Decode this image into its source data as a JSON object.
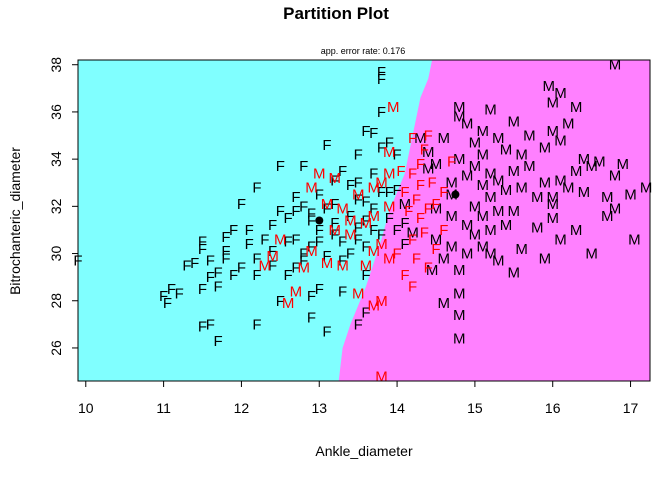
{
  "chart_data": {
    "type": "scatter",
    "title": "Partition Plot",
    "subtitle": "app. error rate: 0.176",
    "xlabel": "Ankle_diameter",
    "ylabel": "Bitrochanteric_diameter",
    "xlim": [
      9.9,
      17.25
    ],
    "ylim": [
      24.6,
      38.2
    ],
    "x_ticks": [
      "10",
      "11",
      "12",
      "13",
      "14",
      "15",
      "16",
      "17"
    ],
    "y_ticks": [
      "26",
      "28",
      "30",
      "32",
      "34",
      "36",
      "38"
    ],
    "regions": [
      {
        "label": "F",
        "color": "#80FFFF"
      },
      {
        "label": "M",
        "color": "#FF80FF"
      }
    ],
    "boundary": [
      [
        13.25,
        24.6
      ],
      [
        13.3,
        26.0
      ],
      [
        13.4,
        27.0
      ],
      [
        13.5,
        27.8
      ],
      [
        13.6,
        28.6
      ],
      [
        13.7,
        29.6
      ],
      [
        13.8,
        30.6
      ],
      [
        13.9,
        31.8
      ],
      [
        14.0,
        32.6
      ],
      [
        14.1,
        33.4
      ],
      [
        14.15,
        34.2
      ],
      [
        14.2,
        35.0
      ],
      [
        14.25,
        35.8
      ],
      [
        14.3,
        36.6
      ],
      [
        14.4,
        37.4
      ],
      [
        14.45,
        38.2
      ]
    ],
    "means": [
      {
        "group": "F",
        "x": 13.0,
        "y": 31.4
      },
      {
        "group": "M",
        "x": 14.75,
        "y": 32.5
      }
    ],
    "point_colors": {
      "correct": "#000000",
      "misclassified": "#FF0000"
    },
    "points_F": [
      [
        9.9,
        29.7
      ],
      [
        11.0,
        28.2
      ],
      [
        11.05,
        27.9
      ],
      [
        11.1,
        28.5
      ],
      [
        11.2,
        28.3
      ],
      [
        11.3,
        29.5
      ],
      [
        11.4,
        29.6
      ],
      [
        11.5,
        26.9
      ],
      [
        11.6,
        27.0
      ],
      [
        11.5,
        28.5
      ],
      [
        11.6,
        29.0
      ],
      [
        11.5,
        30.2
      ],
      [
        11.5,
        30.5
      ],
      [
        11.6,
        29.7
      ],
      [
        11.7,
        28.6
      ],
      [
        11.7,
        29.2
      ],
      [
        11.8,
        29.8
      ],
      [
        11.8,
        30.7
      ],
      [
        11.9,
        31.0
      ],
      [
        11.8,
        30.1
      ],
      [
        11.7,
        26.3
      ],
      [
        11.9,
        29.1
      ],
      [
        12.0,
        29.4
      ],
      [
        12.0,
        32.1
      ],
      [
        12.1,
        31.0
      ],
      [
        12.1,
        30.4
      ],
      [
        12.2,
        29.1
      ],
      [
        12.2,
        27.0
      ],
      [
        12.2,
        32.8
      ],
      [
        12.2,
        29.8
      ],
      [
        12.3,
        30.6
      ],
      [
        12.4,
        29.5
      ],
      [
        12.4,
        30.1
      ],
      [
        12.4,
        31.2
      ],
      [
        12.5,
        31.8
      ],
      [
        12.5,
        33.7
      ],
      [
        12.5,
        28.0
      ],
      [
        12.6,
        29.1
      ],
      [
        12.6,
        30.5
      ],
      [
        12.6,
        31.5
      ],
      [
        12.7,
        29.4
      ],
      [
        12.7,
        30.6
      ],
      [
        12.7,
        31.8
      ],
      [
        12.7,
        32.4
      ],
      [
        12.8,
        29.7
      ],
      [
        12.8,
        30.0
      ],
      [
        12.8,
        32.0
      ],
      [
        12.8,
        33.7
      ],
      [
        12.9,
        30.3
      ],
      [
        12.9,
        31.4
      ],
      [
        12.9,
        31.7
      ],
      [
        12.9,
        28.2
      ],
      [
        12.9,
        27.3
      ],
      [
        13.0,
        28.5
      ],
      [
        13.0,
        30.5
      ],
      [
        13.0,
        31.0
      ],
      [
        13.0,
        32.5
      ],
      [
        13.1,
        34.6
      ],
      [
        13.1,
        31.9
      ],
      [
        13.1,
        29.9
      ],
      [
        13.1,
        26.7
      ],
      [
        13.2,
        31.3
      ],
      [
        13.2,
        30.8
      ],
      [
        13.2,
        32.1
      ],
      [
        13.2,
        33.1
      ],
      [
        13.3,
        28.4
      ],
      [
        13.3,
        29.7
      ],
      [
        13.3,
        30.5
      ],
      [
        13.3,
        33.5
      ],
      [
        13.4,
        32.9
      ],
      [
        13.4,
        31.6
      ],
      [
        13.4,
        30.0
      ],
      [
        13.5,
        30.6
      ],
      [
        13.5,
        31.1
      ],
      [
        13.5,
        32.3
      ],
      [
        13.5,
        33.0
      ],
      [
        13.5,
        34.2
      ],
      [
        13.6,
        29.1
      ],
      [
        13.6,
        30.3
      ],
      [
        13.6,
        31.4
      ],
      [
        13.6,
        32.2
      ],
      [
        13.6,
        35.2
      ],
      [
        13.6,
        27.5
      ],
      [
        13.7,
        31.0
      ],
      [
        13.7,
        31.9
      ],
      [
        13.7,
        33.4
      ],
      [
        13.7,
        35.1
      ],
      [
        13.8,
        37.4
      ],
      [
        13.8,
        37.7
      ],
      [
        13.8,
        36.0
      ],
      [
        13.8,
        34.5
      ],
      [
        13.8,
        32.6
      ],
      [
        13.8,
        30.8
      ],
      [
        13.9,
        31.5
      ],
      [
        13.9,
        32.6
      ],
      [
        13.9,
        34.7
      ],
      [
        14.0,
        31.0
      ],
      [
        14.0,
        32.7
      ],
      [
        14.0,
        34.2
      ],
      [
        14.1,
        31.3
      ],
      [
        14.1,
        30.4
      ],
      [
        13.5,
        27.0
      ]
    ],
    "points_F_misclassified": [
      [
        14.05,
        33.5
      ],
      [
        14.1,
        32.6
      ],
      [
        14.15,
        31.8
      ],
      [
        14.2,
        34.9
      ],
      [
        14.2,
        33.4
      ],
      [
        14.25,
        32.3
      ],
      [
        14.3,
        32.9
      ],
      [
        14.3,
        33.8
      ],
      [
        14.35,
        34.4
      ],
      [
        14.4,
        35.0
      ],
      [
        14.45,
        33.0
      ],
      [
        14.2,
        30.6
      ],
      [
        14.3,
        31.5
      ],
      [
        14.4,
        29.4
      ],
      [
        14.5,
        30.2
      ],
      [
        14.5,
        32.1
      ],
      [
        14.6,
        31.0
      ],
      [
        14.6,
        32.6
      ],
      [
        14.7,
        33.9
      ],
      [
        14.0,
        30.0
      ],
      [
        14.1,
        29.1
      ],
      [
        14.2,
        28.6
      ],
      [
        14.25,
        29.8
      ],
      [
        14.35,
        30.9
      ],
      [
        14.4,
        31.9
      ]
    ],
    "points_M_misclassified": [
      [
        12.3,
        29.5
      ],
      [
        12.4,
        29.9
      ],
      [
        12.5,
        30.6
      ],
      [
        12.6,
        27.9
      ],
      [
        12.7,
        28.4
      ],
      [
        12.8,
        29.4
      ],
      [
        12.9,
        30.1
      ],
      [
        12.9,
        32.8
      ],
      [
        13.0,
        33.4
      ],
      [
        13.1,
        32.1
      ],
      [
        13.1,
        29.6
      ],
      [
        13.2,
        31.0
      ],
      [
        13.2,
        33.2
      ],
      [
        13.3,
        31.9
      ],
      [
        13.3,
        29.5
      ],
      [
        13.4,
        30.8
      ],
      [
        13.4,
        31.4
      ],
      [
        13.5,
        32.5
      ],
      [
        13.5,
        28.3
      ],
      [
        13.6,
        31.3
      ],
      [
        13.6,
        29.5
      ],
      [
        13.7,
        30.1
      ],
      [
        13.7,
        31.6
      ],
      [
        13.7,
        32.8
      ],
      [
        13.8,
        33.0
      ],
      [
        13.8,
        30.4
      ],
      [
        13.8,
        28.0
      ],
      [
        13.9,
        32.0
      ],
      [
        13.9,
        29.8
      ],
      [
        13.9,
        34.3
      ],
      [
        13.8,
        24.8
      ],
      [
        13.95,
        36.2
      ],
      [
        13.7,
        27.8
      ],
      [
        13.9,
        33.4
      ]
    ],
    "points_M": [
      [
        14.1,
        32.1
      ],
      [
        14.2,
        30.9
      ],
      [
        14.3,
        34.9
      ],
      [
        14.4,
        34.3
      ],
      [
        14.4,
        33.6
      ],
      [
        14.45,
        29.3
      ],
      [
        14.5,
        30.6
      ],
      [
        14.5,
        31.9
      ],
      [
        14.5,
        33.8
      ],
      [
        14.6,
        34.9
      ],
      [
        14.6,
        29.8
      ],
      [
        14.6,
        27.9
      ],
      [
        14.7,
        30.3
      ],
      [
        14.7,
        31.6
      ],
      [
        14.7,
        33.0
      ],
      [
        14.7,
        32.5
      ],
      [
        14.8,
        34.0
      ],
      [
        14.8,
        35.8
      ],
      [
        14.8,
        36.2
      ],
      [
        14.8,
        29.3
      ],
      [
        14.8,
        28.3
      ],
      [
        14.8,
        27.4
      ],
      [
        14.8,
        26.4
      ],
      [
        14.9,
        30.0
      ],
      [
        14.9,
        31.2
      ],
      [
        14.9,
        33.3
      ],
      [
        14.9,
        35.5
      ],
      [
        15.0,
        32.0
      ],
      [
        15.0,
        33.7
      ],
      [
        15.0,
        34.7
      ],
      [
        15.0,
        30.8
      ],
      [
        15.1,
        32.9
      ],
      [
        15.1,
        30.3
      ],
      [
        15.1,
        31.6
      ],
      [
        15.1,
        35.2
      ],
      [
        15.1,
        34.2
      ],
      [
        15.2,
        33.4
      ],
      [
        15.2,
        32.4
      ],
      [
        15.2,
        31.0
      ],
      [
        15.2,
        30.0
      ],
      [
        15.2,
        36.1
      ],
      [
        15.3,
        34.9
      ],
      [
        15.3,
        33.1
      ],
      [
        15.3,
        31.8
      ],
      [
        15.3,
        29.7
      ],
      [
        15.4,
        32.7
      ],
      [
        15.4,
        34.4
      ],
      [
        15.4,
        31.2
      ],
      [
        15.5,
        35.6
      ],
      [
        15.5,
        33.5
      ],
      [
        15.5,
        31.8
      ],
      [
        15.5,
        29.2
      ],
      [
        15.6,
        34.2
      ],
      [
        15.6,
        32.8
      ],
      [
        15.6,
        30.2
      ],
      [
        15.7,
        35.0
      ],
      [
        15.7,
        33.7
      ],
      [
        15.8,
        32.4
      ],
      [
        15.8,
        31.1
      ],
      [
        15.9,
        34.5
      ],
      [
        15.9,
        33.0
      ],
      [
        15.9,
        29.8
      ],
      [
        16.0,
        32.4
      ],
      [
        16.0,
        31.5
      ],
      [
        16.0,
        36.4
      ],
      [
        16.1,
        34.8
      ],
      [
        16.1,
        33.1
      ],
      [
        16.1,
        30.6
      ],
      [
        16.2,
        35.5
      ],
      [
        16.2,
        32.8
      ],
      [
        16.3,
        33.5
      ],
      [
        16.3,
        31.0
      ],
      [
        16.3,
        36.2
      ],
      [
        16.4,
        34.0
      ],
      [
        16.4,
        32.6
      ],
      [
        16.5,
        33.7
      ],
      [
        16.5,
        30.0
      ],
      [
        16.6,
        33.9
      ],
      [
        16.7,
        31.6
      ],
      [
        16.7,
        32.4
      ],
      [
        16.8,
        33.3
      ],
      [
        16.8,
        38.0
      ],
      [
        16.8,
        31.9
      ],
      [
        16.9,
        33.8
      ],
      [
        17.0,
        32.5
      ],
      [
        17.05,
        30.6
      ],
      [
        17.2,
        32.8
      ],
      [
        16.0,
        35.2
      ],
      [
        15.95,
        37.1
      ],
      [
        16.1,
        36.8
      ],
      [
        16.0,
        32.1
      ]
    ]
  }
}
